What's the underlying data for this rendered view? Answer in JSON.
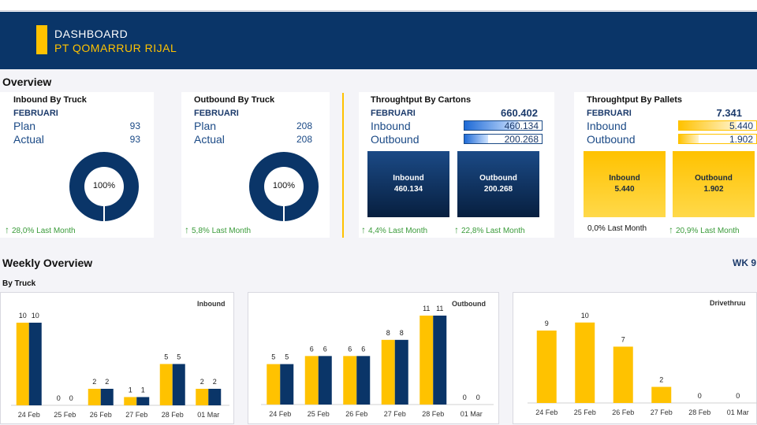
{
  "header": {
    "title": "DASHBOARD",
    "company": "PT QOMARRUR RIJAL"
  },
  "overview": {
    "section_title": "Overview",
    "inbound_truck": {
      "title": "Inbound By Truck",
      "month": "FEBRUARI",
      "plan_label": "Plan",
      "plan_value": "93",
      "actual_label": "Actual",
      "actual_value": "93",
      "donut_pct": "100%",
      "trend": "28,0% Last Month",
      "trend_arrow": "↑"
    },
    "outbound_truck": {
      "title": "Outbound By Truck",
      "month": "FEBRUARI",
      "plan_label": "Plan",
      "plan_value": "208",
      "actual_label": "Actual",
      "actual_value": "208",
      "donut_pct": "100%",
      "trend": "5,8% Last Month",
      "trend_arrow": "↑"
    },
    "cartons": {
      "title": "Throughtput By Cartons",
      "month": "FEBRUARI",
      "total": "660.402",
      "inbound_label": "Inbound",
      "inbound_value": "460.134",
      "inbound_fraction": 0.697,
      "outbound_label": "Outbound",
      "outbound_value": "200.268",
      "outbound_fraction": 0.303,
      "tile_in_label": "Inbound",
      "tile_in_value": "460.134",
      "tile_out_label": "Outbound",
      "tile_out_value": "200.268",
      "trend_in": "4,4% Last Month",
      "trend_out": "22,8% Last Month",
      "trend_arrow": "↑"
    },
    "pallets": {
      "title": "Throughtput By Pallets",
      "month": "FEBRUARI",
      "total": "7.341",
      "inbound_label": "Inbound",
      "inbound_value": "5.440",
      "inbound_fraction": 0.741,
      "outbound_label": "Outbound",
      "outbound_value": "1.902",
      "outbound_fraction": 0.259,
      "tile_in_label": "Inbound",
      "tile_in_value": "5.440",
      "tile_out_label": "Outbound",
      "tile_out_value": "1.902",
      "trend_in": "0,0% Last Month",
      "trend_out": "20,9% Last Month",
      "trend_arrow": "↑"
    }
  },
  "weekly": {
    "section_title": "Weekly Overview",
    "week": "WK 9",
    "subtitle": "By Truck"
  },
  "colors": {
    "navy": "#0a3568",
    "yellow": "#ffc200",
    "green": "#3a9b3a"
  },
  "chart_data": [
    {
      "type": "bar",
      "title": "Inbound",
      "categories": [
        "24 Feb",
        "25 Feb",
        "26 Feb",
        "27 Feb",
        "28 Feb",
        "01 Mar"
      ],
      "series": [
        {
          "color": "#ffc200",
          "values": [
            10,
            0,
            2,
            1,
            5,
            2
          ]
        },
        {
          "color": "#0a3568",
          "values": [
            10,
            0,
            2,
            1,
            5,
            2
          ]
        }
      ]
    },
    {
      "type": "bar",
      "title": "Outbound",
      "categories": [
        "24 Feb",
        "25 Feb",
        "26 Feb",
        "27 Feb",
        "28 Feb",
        "01 Mar"
      ],
      "series": [
        {
          "color": "#ffc200",
          "values": [
            5,
            6,
            6,
            8,
            11,
            0
          ]
        },
        {
          "color": "#0a3568",
          "values": [
            5,
            6,
            6,
            8,
            11,
            0
          ]
        }
      ]
    },
    {
      "type": "bar",
      "title": "Drivethruu",
      "categories": [
        "24 Feb",
        "25 Feb",
        "26 Feb",
        "27 Feb",
        "28 Feb",
        "01 Mar"
      ],
      "series": [
        {
          "color": "#ffc200",
          "values": [
            9,
            10,
            7,
            2,
            0,
            0
          ]
        }
      ]
    }
  ]
}
